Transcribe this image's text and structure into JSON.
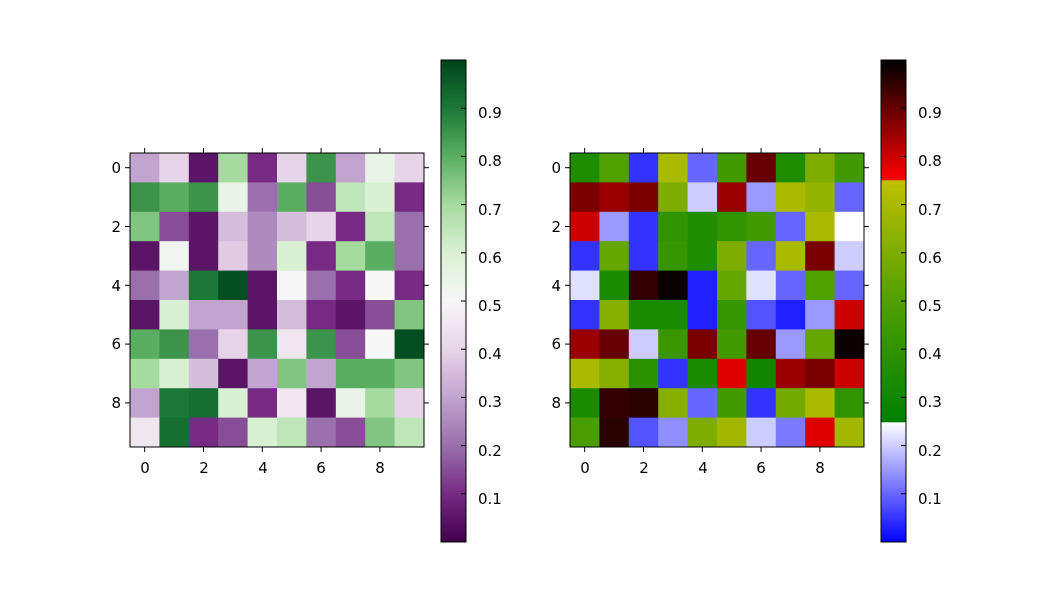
{
  "chart_data": [
    {
      "type": "heatmap",
      "colormap": "PRGn",
      "xticks": [
        "0",
        "2",
        "4",
        "6",
        "8"
      ],
      "yticks": [
        "0",
        "2",
        "4",
        "6",
        "8"
      ],
      "colorbar": {
        "range": [
          0.0,
          1.0
        ],
        "ticks": [
          "0.1",
          "0.2",
          "0.3",
          "0.4",
          "0.5",
          "0.6",
          "0.7",
          "0.8",
          "0.9"
        ]
      },
      "values": [
        [
          0.3,
          0.4,
          0.05,
          0.7,
          0.1,
          0.4,
          0.85,
          0.3,
          0.55,
          0.4
        ],
        [
          0.85,
          0.8,
          0.85,
          0.55,
          0.2,
          0.8,
          0.15,
          0.65,
          0.6,
          0.1
        ],
        [
          0.75,
          0.15,
          0.05,
          0.35,
          0.25,
          0.35,
          0.4,
          0.1,
          0.65,
          0.2
        ],
        [
          0.05,
          0.52,
          0.05,
          0.38,
          0.25,
          0.6,
          0.1,
          0.7,
          0.8,
          0.2
        ],
        [
          0.2,
          0.3,
          0.9,
          0.98,
          0.05,
          0.5,
          0.2,
          0.1,
          0.5,
          0.1
        ],
        [
          0.05,
          0.6,
          0.3,
          0.3,
          0.05,
          0.35,
          0.1,
          0.05,
          0.15,
          0.75
        ],
        [
          0.8,
          0.85,
          0.2,
          0.4,
          0.85,
          0.45,
          0.85,
          0.15,
          0.5,
          0.98
        ],
        [
          0.7,
          0.6,
          0.35,
          0.05,
          0.3,
          0.75,
          0.3,
          0.8,
          0.8,
          0.75
        ],
        [
          0.3,
          0.9,
          0.92,
          0.6,
          0.1,
          0.45,
          0.05,
          0.55,
          0.7,
          0.4
        ],
        [
          0.45,
          0.92,
          0.1,
          0.15,
          0.6,
          0.65,
          0.2,
          0.15,
          0.75,
          0.65
        ]
      ]
    },
    {
      "type": "heatmap",
      "colormap": "brg-stops",
      "xticks": [
        "0",
        "2",
        "4",
        "6",
        "8"
      ],
      "yticks": [
        "0",
        "2",
        "4",
        "6",
        "8"
      ],
      "colorbar": {
        "range": [
          0.0,
          1.0
        ],
        "ticks": [
          "0.1",
          "0.2",
          "0.3",
          "0.4",
          "0.5",
          "0.6",
          "0.7",
          "0.8",
          "0.9"
        ]
      },
      "values": [
        [
          0.35,
          0.5,
          0.05,
          0.7,
          0.1,
          0.45,
          0.9,
          0.35,
          0.6,
          0.45
        ],
        [
          0.88,
          0.85,
          0.88,
          0.6,
          0.2,
          0.85,
          0.15,
          0.7,
          0.65,
          0.1
        ],
        [
          0.8,
          0.15,
          0.05,
          0.4,
          0.35,
          0.4,
          0.45,
          0.1,
          0.7,
          0.25
        ],
        [
          0.05,
          0.55,
          0.05,
          0.42,
          0.35,
          0.6,
          0.1,
          0.7,
          0.88,
          0.2
        ],
        [
          0.22,
          0.33,
          0.95,
          0.99,
          0.03,
          0.55,
          0.22,
          0.1,
          0.5,
          0.1
        ],
        [
          0.05,
          0.62,
          0.33,
          0.33,
          0.03,
          0.42,
          0.08,
          0.03,
          0.15,
          0.8
        ],
        [
          0.85,
          0.9,
          0.2,
          0.43,
          0.88,
          0.45,
          0.9,
          0.15,
          0.55,
          0.99
        ],
        [
          0.7,
          0.62,
          0.38,
          0.05,
          0.33,
          0.78,
          0.3,
          0.85,
          0.88,
          0.8
        ],
        [
          0.33,
          0.95,
          0.96,
          0.62,
          0.1,
          0.45,
          0.05,
          0.58,
          0.7,
          0.4
        ],
        [
          0.48,
          0.96,
          0.08,
          0.14,
          0.6,
          0.68,
          0.2,
          0.12,
          0.78,
          0.68
        ]
      ]
    }
  ]
}
